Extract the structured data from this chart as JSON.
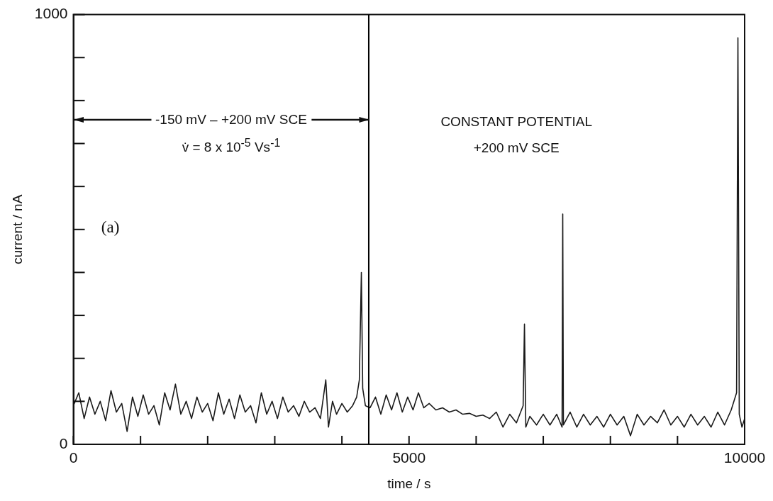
{
  "chart_data": {
    "type": "line",
    "xlabel": "time / s",
    "ylabel": "current / nA",
    "annotations": [
      "-150 mV – +200 mV SCE",
      "v̇ = 8 x 10$^{-5}$ Vs$^{-1}$",
      "CONSTANT POTENTIAL",
      "+200 mV SCE",
      "(a)"
    ],
    "xlim": [
      0,
      10000
    ],
    "ylim": [
      0,
      1000
    ],
    "xticks": [
      0,
      {
        "value": 1000,
        "label": null
      },
      {
        "value": 2000,
        "label": null
      },
      {
        "value": 3000,
        "label": null
      },
      {
        "value": 4000,
        "label": null
      },
      5000,
      {
        "value": 6000,
        "label": null
      },
      {
        "value": 7000,
        "label": null
      },
      {
        "value": 8000,
        "label": null
      },
      {
        "value": 9000,
        "label": null
      },
      10000
    ],
    "yticks": [
      0,
      {
        "value": 100,
        "label": null
      },
      {
        "value": 200,
        "label": null
      },
      {
        "value": 300,
        "label": null
      },
      {
        "value": 400,
        "label": null
      },
      {
        "value": 500,
        "label": null
      },
      {
        "value": 600,
        "label": null
      },
      {
        "value": 700,
        "label": null
      },
      {
        "value": 800,
        "label": null
      },
      {
        "value": 900,
        "label": null
      },
      1000
    ],
    "ref_lines": [
      {
        "axis": "x",
        "value": 4400,
        "color": "#000000"
      }
    ],
    "grid": false,
    "legend": false,
    "marker": "none",
    "line_style": "solid",
    "series": [
      {
        "color": "#1a1a1a",
        "x": [
          0,
          80,
          160,
          240,
          320,
          400,
          480,
          560,
          640,
          720,
          800,
          880,
          960,
          1040,
          1120,
          1200,
          1280,
          1360,
          1440,
          1520,
          1600,
          1680,
          1760,
          1840,
          1920,
          2000,
          2080,
          2160,
          2240,
          2320,
          2400,
          2480,
          2560,
          2640,
          2720,
          2800,
          2880,
          2960,
          3040,
          3120,
          3200,
          3280,
          3360,
          3440,
          3520,
          3600,
          3680,
          3760,
          3800,
          3860,
          3920,
          4000,
          4080,
          4160,
          4220,
          4260,
          4290,
          4310,
          4350,
          4420,
          4500,
          4580,
          4660,
          4740,
          4820,
          4900,
          4980,
          5060,
          5140,
          5220,
          5300,
          5400,
          5500,
          5600,
          5700,
          5800,
          5900,
          6000,
          6100,
          6200,
          6300,
          6400,
          6500,
          6600,
          6700,
          6720,
          6740,
          6800,
          6900,
          7000,
          7100,
          7200,
          7280,
          7290,
          7300,
          7400,
          7500,
          7600,
          7700,
          7800,
          7900,
          8000,
          8100,
          8200,
          8300,
          8400,
          8500,
          8600,
          8700,
          8800,
          8900,
          9000,
          9100,
          9200,
          9300,
          9400,
          9500,
          9600,
          9700,
          9800,
          9880,
          9900,
          9920,
          9960,
          10000
        ],
        "values": [
          90,
          120,
          60,
          110,
          70,
          100,
          55,
          125,
          75,
          95,
          30,
          110,
          65,
          115,
          70,
          90,
          45,
          120,
          80,
          140,
          70,
          100,
          60,
          110,
          75,
          95,
          55,
          120,
          70,
          105,
          60,
          115,
          75,
          90,
          50,
          120,
          70,
          100,
          60,
          110,
          75,
          90,
          65,
          100,
          75,
          85,
          60,
          150,
          40,
          100,
          70,
          95,
          75,
          90,
          110,
          150,
          400,
          130,
          90,
          85,
          110,
          70,
          115,
          80,
          120,
          75,
          110,
          80,
          120,
          85,
          95,
          80,
          85,
          75,
          80,
          70,
          72,
          65,
          68,
          60,
          75,
          40,
          70,
          50,
          90,
          280,
          40,
          65,
          45,
          70,
          45,
          70,
          40,
          536,
          45,
          75,
          40,
          70,
          45,
          65,
          40,
          70,
          45,
          65,
          20,
          70,
          45,
          65,
          50,
          80,
          45,
          65,
          40,
          70,
          45,
          65,
          40,
          75,
          45,
          80,
          120,
          946,
          70,
          40,
          60
        ]
      }
    ]
  }
}
